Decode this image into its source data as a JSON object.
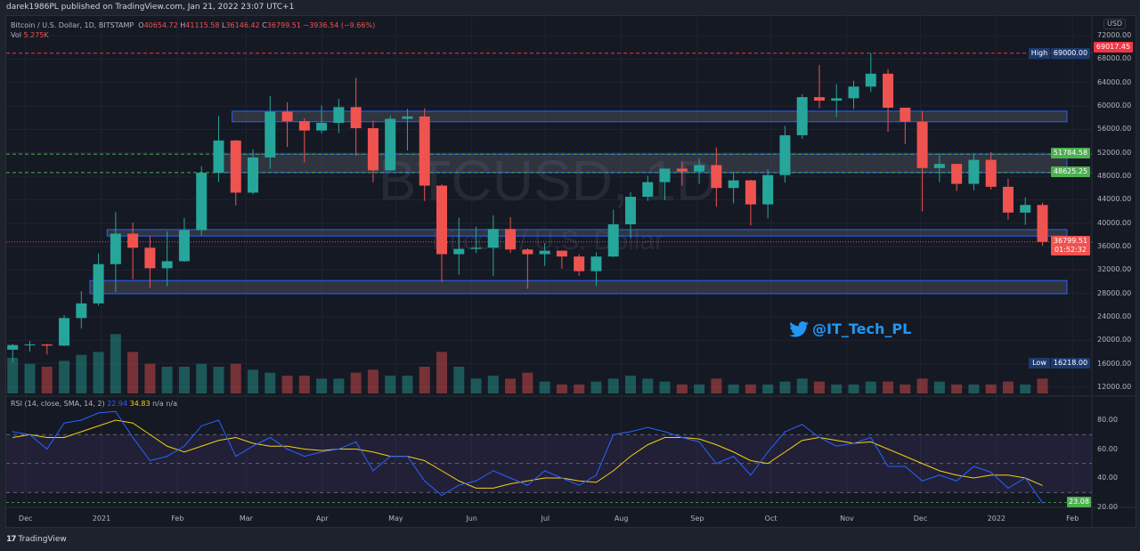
{
  "header": {
    "published": "darek1986PL published on TradingView.com, Jan 21, 2022 23:07 UTC+1"
  },
  "legend": {
    "symbol": "Bitcoin / U.S. Dollar, 1D, BITSTAMP",
    "o": "40654.72",
    "h": "41115.58",
    "l": "36146.42",
    "c": "36799.51",
    "change": "−3936.54 (−9.66%)",
    "vol_label": "Vol",
    "vol": "5.275K"
  },
  "watermark": {
    "ticker": "BTCUSD, 1D",
    "name": "Bitcoin / U.S. Dollar"
  },
  "social": {
    "handle": "@IT_Tech_PL",
    "icon": "twitter-bird-icon"
  },
  "rsi_legend": {
    "label": "RSI (14, close, SMA, 14, 2)",
    "rsi": "22.94",
    "sma": "34.83",
    "na1": "n/a",
    "na2": "n/a"
  },
  "axis": {
    "currency": "USD",
    "price_ticks": [
      "72000.00",
      "68000.00",
      "64000.00",
      "60000.00",
      "56000.00",
      "52000.00",
      "48000.00",
      "44000.00",
      "40000.00",
      "36000.00",
      "32000.00",
      "28000.00",
      "24000.00",
      "20000.00",
      "16000.00",
      "12000.00"
    ],
    "rsi_ticks": [
      "80.00",
      "60.00",
      "40.00",
      "20.00"
    ],
    "time_ticks": [
      "Dec",
      "2021",
      "Feb",
      "Mar",
      "Apr",
      "May",
      "Jun",
      "Jul",
      "Aug",
      "Sep",
      "Oct",
      "Nov",
      "Dec",
      "2022",
      "Feb"
    ]
  },
  "badges": {
    "last_high": "69017.45",
    "high_tag": "High",
    "high": "69000.00",
    "level1": "51784.58",
    "level2": "48625.25",
    "last": "36799.51",
    "countdown": "01:52:32",
    "low_tag": "Low",
    "low": "16218.00",
    "rsi_last": "23.08"
  },
  "colors": {
    "up": "#26a69a",
    "down": "#ef5350",
    "rsi": "#2962ff",
    "sma": "#f5d10d",
    "zone_border": "#2962ff",
    "level": "#4caf50",
    "bg": "#151924"
  },
  "footer": {
    "brand": "TradingView"
  },
  "chart_data": {
    "type": "candlestick",
    "timeframe_shown": "weekly aggregation of 1D chart",
    "ylim": [
      12000,
      72000
    ],
    "rsi_ylim": [
      15,
      95
    ],
    "grid": true,
    "log_scale": false,
    "zones": [
      [
        57300,
        59100,
        "2021-02-24"
      ],
      [
        48625.25,
        51784.58,
        "2021-02-17"
      ],
      [
        37800,
        38900,
        "2021-01-04"
      ],
      [
        27950,
        30200,
        "2020-12-28"
      ]
    ],
    "lines": {
      "high": 69000,
      "levels": [
        51784.58,
        48625.25
      ],
      "last": 36799.51,
      "rsi_bands": [
        70,
        50,
        30
      ]
    },
    "candles": [
      [
        "2020-11-23",
        18400,
        19400,
        16218,
        19200
      ],
      [
        "2020-11-30",
        19200,
        19900,
        18100,
        19300
      ],
      [
        "2020-12-07",
        19300,
        19400,
        17600,
        19100
      ],
      [
        "2020-12-14",
        19100,
        24300,
        19000,
        23800
      ],
      [
        "2020-12-21",
        23800,
        28400,
        22000,
        26300
      ],
      [
        "2020-12-28",
        26300,
        34800,
        25900,
        33000
      ],
      [
        "2021-01-04",
        33000,
        41900,
        28200,
        38200
      ],
      [
        "2021-01-11",
        38200,
        40100,
        30400,
        35800
      ],
      [
        "2021-01-18",
        35800,
        37800,
        28900,
        32300
      ],
      [
        "2021-01-25",
        32300,
        38600,
        29200,
        33500
      ],
      [
        "2021-02-01",
        33500,
        40900,
        33400,
        38800
      ],
      [
        "2021-02-08",
        38800,
        49700,
        37900,
        48600
      ],
      [
        "2021-02-15",
        48600,
        58300,
        47000,
        54100
      ],
      [
        "2021-02-22",
        54100,
        54200,
        43000,
        45200
      ],
      [
        "2021-03-01",
        45200,
        52600,
        44900,
        51200
      ],
      [
        "2021-03-08",
        51200,
        61700,
        49300,
        59000
      ],
      [
        "2021-03-15",
        59000,
        60600,
        53000,
        57400
      ],
      [
        "2021-03-22",
        57400,
        57900,
        50400,
        55800
      ],
      [
        "2021-03-29",
        55800,
        60100,
        55300,
        57100
      ],
      [
        "2021-04-05",
        57100,
        61200,
        55400,
        59800
      ],
      [
        "2021-04-12",
        59800,
        64800,
        51500,
        56200
      ],
      [
        "2021-04-19",
        56200,
        57500,
        47000,
        49000
      ],
      [
        "2021-04-26",
        49000,
        58400,
        48800,
        57800
      ],
      [
        "2021-05-03",
        57800,
        59500,
        52400,
        58200
      ],
      [
        "2021-05-10",
        58200,
        59600,
        43800,
        46400
      ],
      [
        "2021-05-17",
        46400,
        46600,
        30000,
        34700
      ],
      [
        "2021-05-24",
        34700,
        40900,
        31200,
        35600
      ],
      [
        "2021-05-31",
        35600,
        39400,
        34900,
        35800
      ],
      [
        "2021-06-07",
        35800,
        41300,
        31000,
        39000
      ],
      [
        "2021-06-14",
        39000,
        41000,
        34900,
        35500
      ],
      [
        "2021-06-21",
        35500,
        35700,
        28800,
        34700
      ],
      [
        "2021-06-28",
        34700,
        36600,
        32700,
        35300
      ],
      [
        "2021-07-05",
        35300,
        35300,
        32200,
        34300
      ],
      [
        "2021-07-12",
        34300,
        34700,
        31000,
        31800
      ],
      [
        "2021-07-19",
        31800,
        35000,
        29300,
        34300
      ],
      [
        "2021-07-26",
        34300,
        42300,
        34200,
        39800
      ],
      [
        "2021-08-02",
        39800,
        45300,
        37500,
        44500
      ],
      [
        "2021-08-09",
        44500,
        48100,
        43800,
        47000
      ],
      [
        "2021-08-16",
        47000,
        49300,
        43900,
        49300
      ],
      [
        "2021-08-23",
        49300,
        50500,
        46400,
        48800
      ],
      [
        "2021-08-30",
        48800,
        51000,
        46700,
        49900
      ],
      [
        "2021-09-06",
        49900,
        52900,
        42800,
        46000
      ],
      [
        "2021-09-13",
        46000,
        48800,
        43400,
        47300
      ],
      [
        "2021-09-20",
        47300,
        47400,
        39600,
        43200
      ],
      [
        "2021-09-27",
        43200,
        49200,
        40800,
        48200
      ],
      [
        "2021-10-04",
        48200,
        56600,
        46900,
        55000
      ],
      [
        "2021-10-11",
        55000,
        62000,
        54400,
        61500
      ],
      [
        "2021-10-18",
        61500,
        67000,
        59600,
        60900
      ],
      [
        "2021-10-25",
        60900,
        63700,
        58100,
        61300
      ],
      [
        "2021-11-01",
        61300,
        64300,
        59500,
        63300
      ],
      [
        "2021-11-08",
        63300,
        69017.45,
        62400,
        65500
      ],
      [
        "2021-11-15",
        65500,
        66300,
        55600,
        59700
      ],
      [
        "2021-11-22",
        59700,
        59700,
        53500,
        57300
      ],
      [
        "2021-11-29",
        57300,
        59100,
        42000,
        49400
      ],
      [
        "2021-12-06",
        49400,
        51900,
        47000,
        50100
      ],
      [
        "2021-12-13",
        50100,
        50100,
        45500,
        46700
      ],
      [
        "2021-12-20",
        46700,
        51900,
        45600,
        50800
      ],
      [
        "2021-12-27",
        50800,
        52100,
        45700,
        46200
      ],
      [
        "2022-01-03",
        46200,
        47600,
        40600,
        41800
      ],
      [
        "2022-01-10",
        41800,
        44400,
        39700,
        43100
      ],
      [
        "2022-01-17",
        43100,
        43500,
        36146.42,
        36799.51
      ]
    ],
    "volume_k": [
      12,
      10,
      9,
      11,
      13,
      14,
      20,
      14,
      10,
      9,
      9,
      10,
      9,
      10,
      8,
      7,
      6,
      6,
      5,
      5,
      7,
      8,
      6,
      6,
      9,
      14,
      9,
      5,
      6,
      5,
      7,
      4,
      3,
      3,
      4,
      5,
      6,
      5,
      4,
      3,
      3,
      5,
      3,
      3,
      3,
      4,
      5,
      4,
      3,
      3,
      4,
      4,
      3,
      5,
      4,
      3,
      3,
      3,
      4,
      3,
      5
    ],
    "rsi": [
      72,
      70,
      60,
      78,
      80,
      85,
      86,
      68,
      52,
      55,
      62,
      76,
      80,
      55,
      62,
      68,
      60,
      55,
      58,
      60,
      65,
      45,
      55,
      55,
      38,
      28,
      35,
      38,
      45,
      40,
      35,
      45,
      40,
      35,
      42,
      70,
      72,
      75,
      72,
      68,
      65,
      50,
      55,
      42,
      58,
      72,
      77,
      68,
      62,
      64,
      68,
      48,
      48,
      38,
      42,
      38,
      48,
      44,
      33,
      40,
      22.94
    ],
    "rsi_sma": [
      68,
      70,
      68,
      68,
      72,
      76,
      80,
      78,
      70,
      62,
      58,
      62,
      66,
      68,
      64,
      62,
      62,
      60,
      59,
      60,
      60,
      58,
      55,
      55,
      52,
      45,
      38,
      33,
      33,
      36,
      38,
      40,
      40,
      38,
      37,
      45,
      55,
      63,
      68,
      68,
      67,
      63,
      58,
      52,
      50,
      58,
      66,
      68,
      66,
      64,
      65,
      60,
      55,
      50,
      45,
      42,
      40,
      42,
      42,
      40,
      34.83
    ]
  }
}
